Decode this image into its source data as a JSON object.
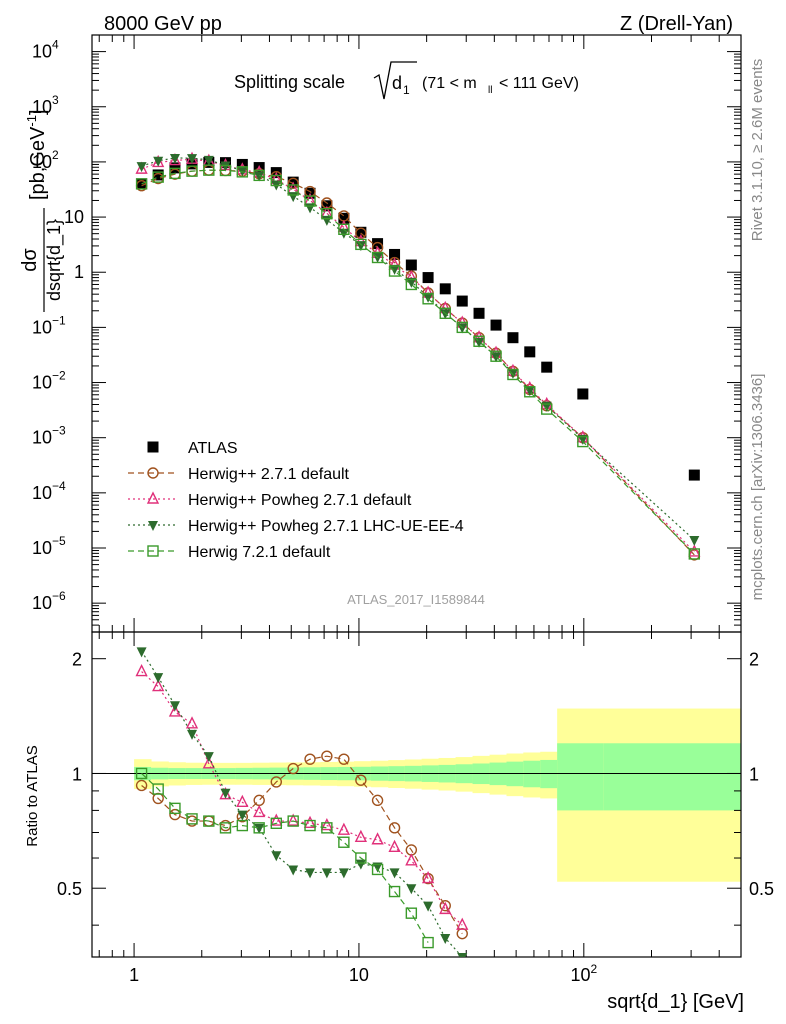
{
  "header": {
    "left": "8000 GeV pp",
    "right": "Z (Drell-Yan)"
  },
  "side_labels": {
    "rivet": "Rivet 3.1.10, ≥ 2.6M events",
    "mcplots": "mcplots.cern.ch [arXiv:1306.3436]"
  },
  "watermark": "ATLAS_2017_I1589844",
  "chart_data": [
    {
      "type": "scatter",
      "title": "Splitting scale √d₁ (71 < m_ll < 111 GeV)",
      "title_parts": {
        "main": "Splitting scale",
        "symbol": "d",
        "sub": "1",
        "range_pre": "(71 < m",
        "range_sub": "ll",
        "range_post": " < 111 GeV)"
      },
      "xlabel": "sqrt{d_1} [GeV]",
      "ylabel_num": "dσ",
      "ylabel_den": "dsqrt{d_1}",
      "ylabel_unit": "[pb,GeV",
      "ylabel_unit_sup": "-1",
      "ylabel_unit_close": "]",
      "x_scale": "log",
      "y_scale": "log",
      "xlim": [
        0.65,
        500
      ],
      "ylim": [
        3e-07,
        20000
      ],
      "x_ticks": [
        {
          "base": "1",
          "exp": ""
        },
        {
          "base": "10",
          "exp": ""
        },
        {
          "base": "10",
          "exp": "2"
        }
      ],
      "y_ticks": [
        {
          "value": 1e-06,
          "base": "10",
          "exp": "−6"
        },
        {
          "value": 1e-05,
          "base": "10",
          "exp": "−5"
        },
        {
          "value": 0.0001,
          "base": "10",
          "exp": "−4"
        },
        {
          "value": 0.001,
          "base": "10",
          "exp": "−3"
        },
        {
          "value": 0.01,
          "base": "10",
          "exp": "−2"
        },
        {
          "value": 0.1,
          "base": "10",
          "exp": "−1"
        },
        {
          "value": 1,
          "base": "1",
          "exp": ""
        },
        {
          "value": 10,
          "base": "10",
          "exp": ""
        },
        {
          "value": 100,
          "base": "10",
          "exp": "2"
        },
        {
          "value": 1000,
          "base": "10",
          "exp": "3"
        },
        {
          "value": 10000,
          "base": "10",
          "exp": "4"
        }
      ],
      "legend_position": "lower-left",
      "series": [
        {
          "name": "ATLAS",
          "color": "#000000",
          "marker": "square-filled",
          "line": "none",
          "x": [
            1.08,
            1.28,
            1.52,
            1.81,
            2.15,
            2.55,
            3.03,
            3.6,
            4.29,
            5.1,
            6.06,
            7.2,
            8.57,
            10.2,
            12.1,
            14.4,
            17.1,
            20.3,
            24.2,
            28.8,
            34.2,
            40.7,
            48.4,
            57.5,
            68.4,
            99.0,
            310.0
          ],
          "y": [
            40,
            58,
            78,
            92,
            98,
            97,
            90,
            79,
            64,
            43,
            27,
            16,
            9.5,
            5.3,
            3.3,
            2.1,
            1.35,
            0.8,
            0.5,
            0.3,
            0.18,
            0.11,
            0.065,
            0.036,
            0.019,
            0.0062,
            0.00021
          ]
        },
        {
          "name": "Herwig++ 2.7.1 default",
          "color": "#a0521e",
          "marker": "circle-open",
          "line": "dashed",
          "x": [
            1.08,
            1.28,
            1.52,
            1.81,
            2.15,
            2.55,
            3.03,
            3.6,
            4.29,
            5.1,
            6.06,
            7.2,
            8.57,
            10.2,
            12.1,
            14.4,
            17.1,
            20.3,
            24.2,
            28.8,
            34.2,
            40.7,
            48.4,
            57.5,
            68.4,
            99.0,
            310.0
          ],
          "y": [
            37,
            50,
            60,
            68,
            71,
            70,
            68,
            61,
            54,
            41,
            29,
            18,
            10.5,
            5.1,
            2.8,
            1.5,
            0.85,
            0.42,
            0.22,
            0.12,
            0.065,
            0.034,
            0.016,
            0.0075,
            0.0038,
            0.001,
            7.5e-06
          ]
        },
        {
          "name": "Herwig++ Powheg 2.7.1 default",
          "color": "#e0307a",
          "marker": "triangle-open",
          "line": "dotted",
          "x": [
            1.08,
            1.28,
            1.52,
            1.81,
            2.15,
            2.55,
            3.03,
            3.6,
            4.29,
            5.1,
            6.06,
            7.2,
            8.57,
            10.2,
            12.1,
            14.4,
            17.1,
            20.3,
            24.2,
            28.8,
            34.2,
            40.7,
            48.4,
            57.5,
            68.4,
            99.0,
            310.0
          ],
          "y": [
            74,
            98,
            106,
            112,
            103,
            86,
            72,
            64,
            48,
            32,
            20,
            11.7,
            6.5,
            3.6,
            2.2,
            1.35,
            0.8,
            0.42,
            0.22,
            0.12,
            0.065,
            0.034,
            0.016,
            0.0078,
            0.004,
            0.001,
            8.5e-06
          ]
        },
        {
          "name": "Herwig++ Powheg 2.7.1 LHC-UE-EE-4",
          "color": "#2d6b2d",
          "marker": "triangle-down-filled",
          "line": "dotted",
          "x": [
            1.08,
            1.28,
            1.52,
            1.81,
            2.15,
            2.55,
            3.03,
            3.6,
            4.29,
            5.1,
            6.06,
            7.2,
            8.57,
            10.2,
            12.1,
            14.4,
            17.1,
            20.3,
            24.2,
            28.8,
            34.2,
            40.7,
            48.4,
            57.5,
            68.4,
            99.0,
            310.0
          ],
          "y": [
            84,
            105,
            118,
            117,
            109,
            86,
            70,
            57,
            39,
            24,
            15,
            8.9,
            5.2,
            3.1,
            1.9,
            1.15,
            0.67,
            0.36,
            0.18,
            0.1,
            0.055,
            0.03,
            0.015,
            0.0073,
            0.0038,
            0.00095,
            1.4e-05
          ]
        },
        {
          "name": "Herwig 7.2.1 default",
          "color": "#3a9a2a",
          "marker": "square-open",
          "line": "dashed",
          "x": [
            1.08,
            1.28,
            1.52,
            1.81,
            2.15,
            2.55,
            3.03,
            3.6,
            4.29,
            5.1,
            6.06,
            7.2,
            8.57,
            10.2,
            12.1,
            14.4,
            17.1,
            20.3,
            24.2,
            28.8,
            34.2,
            40.7,
            48.4,
            57.5,
            68.4,
            99.0,
            310.0
          ],
          "y": [
            40,
            53,
            62,
            68,
            71,
            70,
            66,
            57,
            46,
            31,
            19.5,
            11.5,
            6.0,
            3.2,
            1.85,
            1.05,
            0.6,
            0.33,
            0.18,
            0.1,
            0.056,
            0.03,
            0.014,
            0.0068,
            0.0033,
            0.00085,
            7.8e-06
          ]
        }
      ]
    },
    {
      "type": "line",
      "ylabel": "Ratio to ATLAS",
      "x_scale": "log",
      "ylim": [
        0.33,
        2.35
      ],
      "y_ticks": [
        {
          "value": 0.5,
          "label": "0.5"
        },
        {
          "value": 1,
          "label": "1"
        },
        {
          "value": 2,
          "label": "2"
        }
      ],
      "uncertainty_bands": {
        "bin_edges": [
          1.0,
          1.19,
          1.42,
          1.69,
          2.0,
          2.38,
          2.83,
          3.36,
          4.0,
          4.76,
          5.66,
          6.73,
          8.0,
          9.51,
          11.3,
          13.5,
          16.0,
          19.0,
          22.6,
          26.9,
          32.0,
          38.1,
          45.3,
          53.8,
          64.0,
          76.1,
          122.0,
          500.0
        ],
        "stat_halfwidth": [
          0.04,
          0.035,
          0.033,
          0.033,
          0.033,
          0.033,
          0.034,
          0.035,
          0.036,
          0.037,
          0.038,
          0.039,
          0.04,
          0.041,
          0.043,
          0.045,
          0.047,
          0.05,
          0.053,
          0.057,
          0.062,
          0.068,
          0.074,
          0.08,
          0.085,
          0.2,
          0.2
        ],
        "total_halfwidth": [
          0.09,
          0.075,
          0.07,
          0.067,
          0.066,
          0.066,
          0.066,
          0.067,
          0.068,
          0.069,
          0.07,
          0.072,
          0.074,
          0.077,
          0.08,
          0.084,
          0.088,
          0.093,
          0.098,
          0.104,
          0.112,
          0.12,
          0.128,
          0.135,
          0.14,
          0.48,
          0.48
        ],
        "stat_color": "#99ff99",
        "total_color": "#ffff99"
      },
      "series": [
        {
          "name": "Herwig++ 2.7.1 default",
          "color": "#a0521e",
          "marker": "circle-open",
          "line": "dashed",
          "x": [
            1.08,
            1.28,
            1.52,
            1.81,
            2.15,
            2.55,
            3.03,
            3.6,
            4.29,
            5.1,
            6.06,
            7.2,
            8.57,
            10.2,
            12.1,
            14.4,
            17.1,
            20.3,
            24.2,
            28.8
          ],
          "y": [
            0.93,
            0.86,
            0.78,
            0.75,
            0.75,
            0.73,
            0.77,
            0.85,
            0.95,
            1.03,
            1.09,
            1.11,
            1.09,
            0.96,
            0.85,
            0.72,
            0.63,
            0.53,
            0.45,
            0.38
          ]
        },
        {
          "name": "Herwig++ Powheg 2.7.1 default",
          "color": "#e0307a",
          "marker": "triangle-open",
          "line": "dotted",
          "x": [
            1.08,
            1.28,
            1.52,
            1.81,
            2.15,
            2.55,
            3.03,
            3.6,
            4.29,
            5.1,
            6.06,
            7.2,
            8.57,
            10.2,
            12.1,
            14.4,
            17.1,
            20.3,
            24.2,
            28.8
          ],
          "y": [
            1.85,
            1.69,
            1.45,
            1.35,
            1.06,
            0.88,
            0.84,
            0.79,
            0.75,
            0.75,
            0.74,
            0.73,
            0.71,
            0.68,
            0.67,
            0.64,
            0.59,
            0.53,
            0.44,
            0.4
          ]
        },
        {
          "name": "Herwig++ Powheg 2.7.1 LHC-UE-EE-4",
          "color": "#2d6b2d",
          "marker": "triangle-down-filled",
          "line": "dotted",
          "x": [
            1.08,
            1.28,
            1.52,
            1.81,
            2.15,
            2.55,
            3.03,
            3.6,
            4.29,
            5.1,
            6.06,
            7.2,
            8.57,
            10.2,
            12.1,
            14.4,
            17.1,
            20.3,
            24.2,
            28.8
          ],
          "y": [
            2.09,
            1.79,
            1.51,
            1.27,
            1.11,
            0.89,
            0.78,
            0.72,
            0.61,
            0.56,
            0.55,
            0.55,
            0.55,
            0.58,
            0.57,
            0.55,
            0.5,
            0.45,
            0.37,
            0.33
          ]
        },
        {
          "name": "Herwig 7.2.1 default",
          "color": "#3a9a2a",
          "marker": "square-open",
          "line": "dashed",
          "x": [
            1.08,
            1.28,
            1.52,
            1.81,
            2.15,
            2.55,
            3.03,
            3.6,
            4.29,
            5.1,
            6.06,
            7.2,
            8.57,
            10.2,
            12.1,
            14.4,
            17.1,
            20.3
          ],
          "y": [
            1.0,
            0.91,
            0.81,
            0.76,
            0.75,
            0.72,
            0.73,
            0.72,
            0.74,
            0.75,
            0.73,
            0.72,
            0.66,
            0.6,
            0.56,
            0.49,
            0.43,
            0.36
          ]
        }
      ]
    }
  ]
}
